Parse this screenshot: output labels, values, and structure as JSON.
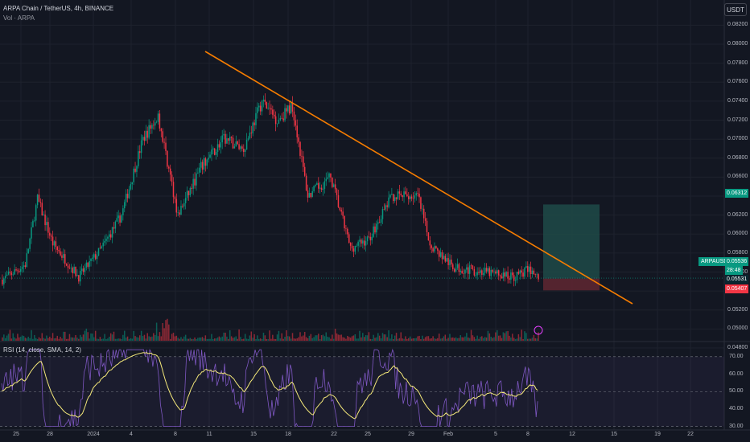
{
  "header": {
    "symbol_line": "ARPA Chain / TetherUS, 4h, BINANCE",
    "volume_label": "Vol · ARPA",
    "rsi_label": "RSI (14, close, SMA, 14, 2)",
    "currency_button": "USDT"
  },
  "price_axis": {
    "ticks": [
      "0.08200",
      "0.08000",
      "0.07800",
      "0.07600",
      "0.07400",
      "0.07200",
      "0.07000",
      "0.06800",
      "0.06600",
      "0.06400",
      "0.06200",
      "0.06000",
      "0.05800",
      "0.05600",
      "0.05200",
      "0.05000",
      "0.04800"
    ]
  },
  "price_tags": {
    "target": "0.06312",
    "symbol": "ARPAUSDT",
    "last_price": "0.05536",
    "countdown": "28:48",
    "entry": "0.05531",
    "stop": "0.05407"
  },
  "rsi_axis": {
    "ticks": [
      "70.00",
      "60.00",
      "50.00",
      "40.00",
      "30.00"
    ]
  },
  "time_axis": {
    "ticks": [
      "25",
      "28",
      "2024",
      "4",
      "8",
      "11",
      "15",
      "18",
      "22",
      "25",
      "29",
      "Feb",
      "5",
      "8",
      "12",
      "15",
      "19",
      "22"
    ]
  },
  "colors": {
    "background": "#131722",
    "up": "#089981",
    "down": "#f23645",
    "trendline": "#f57c00",
    "rsi_line": "#7e57c2",
    "rsi_ma": "#f5e97a",
    "target_zone": "#1e4a48",
    "stop_zone": "#5c2631"
  },
  "chart_data": {
    "type": "candlestick",
    "interval": "4h",
    "price_range": [
      0.047,
      0.083
    ],
    "waypoints": [
      {
        "t": 0,
        "p": 0.0552
      },
      {
        "t": 15,
        "p": 0.0568
      },
      {
        "t": 23,
        "p": 0.0637
      },
      {
        "t": 33,
        "p": 0.059
      },
      {
        "t": 50,
        "p": 0.0555
      },
      {
        "t": 65,
        "p": 0.0585
      },
      {
        "t": 78,
        "p": 0.062
      },
      {
        "t": 92,
        "p": 0.07
      },
      {
        "t": 102,
        "p": 0.0725
      },
      {
        "t": 115,
        "p": 0.062
      },
      {
        "t": 130,
        "p": 0.067
      },
      {
        "t": 145,
        "p": 0.07
      },
      {
        "t": 158,
        "p": 0.069
      },
      {
        "t": 170,
        "p": 0.074
      },
      {
        "t": 180,
        "p": 0.072
      },
      {
        "t": 190,
        "p": 0.0735
      },
      {
        "t": 200,
        "p": 0.064
      },
      {
        "t": 215,
        "p": 0.066
      },
      {
        "t": 228,
        "p": 0.0585
      },
      {
        "t": 240,
        "p": 0.0595
      },
      {
        "t": 255,
        "p": 0.064
      },
      {
        "t": 272,
        "p": 0.064
      },
      {
        "t": 280,
        "p": 0.059
      },
      {
        "t": 295,
        "p": 0.0565
      },
      {
        "t": 315,
        "p": 0.056
      },
      {
        "t": 335,
        "p": 0.0555
      },
      {
        "t": 345,
        "p": 0.0563
      },
      {
        "t": 351,
        "p": 0.0554
      }
    ],
    "trendline": {
      "start": {
        "t": "Jan 10",
        "p": 0.0788
      },
      "end": {
        "t": "Feb 19",
        "p": 0.0507
      }
    },
    "position": {
      "target": 0.06312,
      "entry": 0.05531,
      "stop": 0.05407
    },
    "rsi": {
      "overbought": 70,
      "oversold": 30,
      "range": [
        28,
        75
      ]
    }
  }
}
